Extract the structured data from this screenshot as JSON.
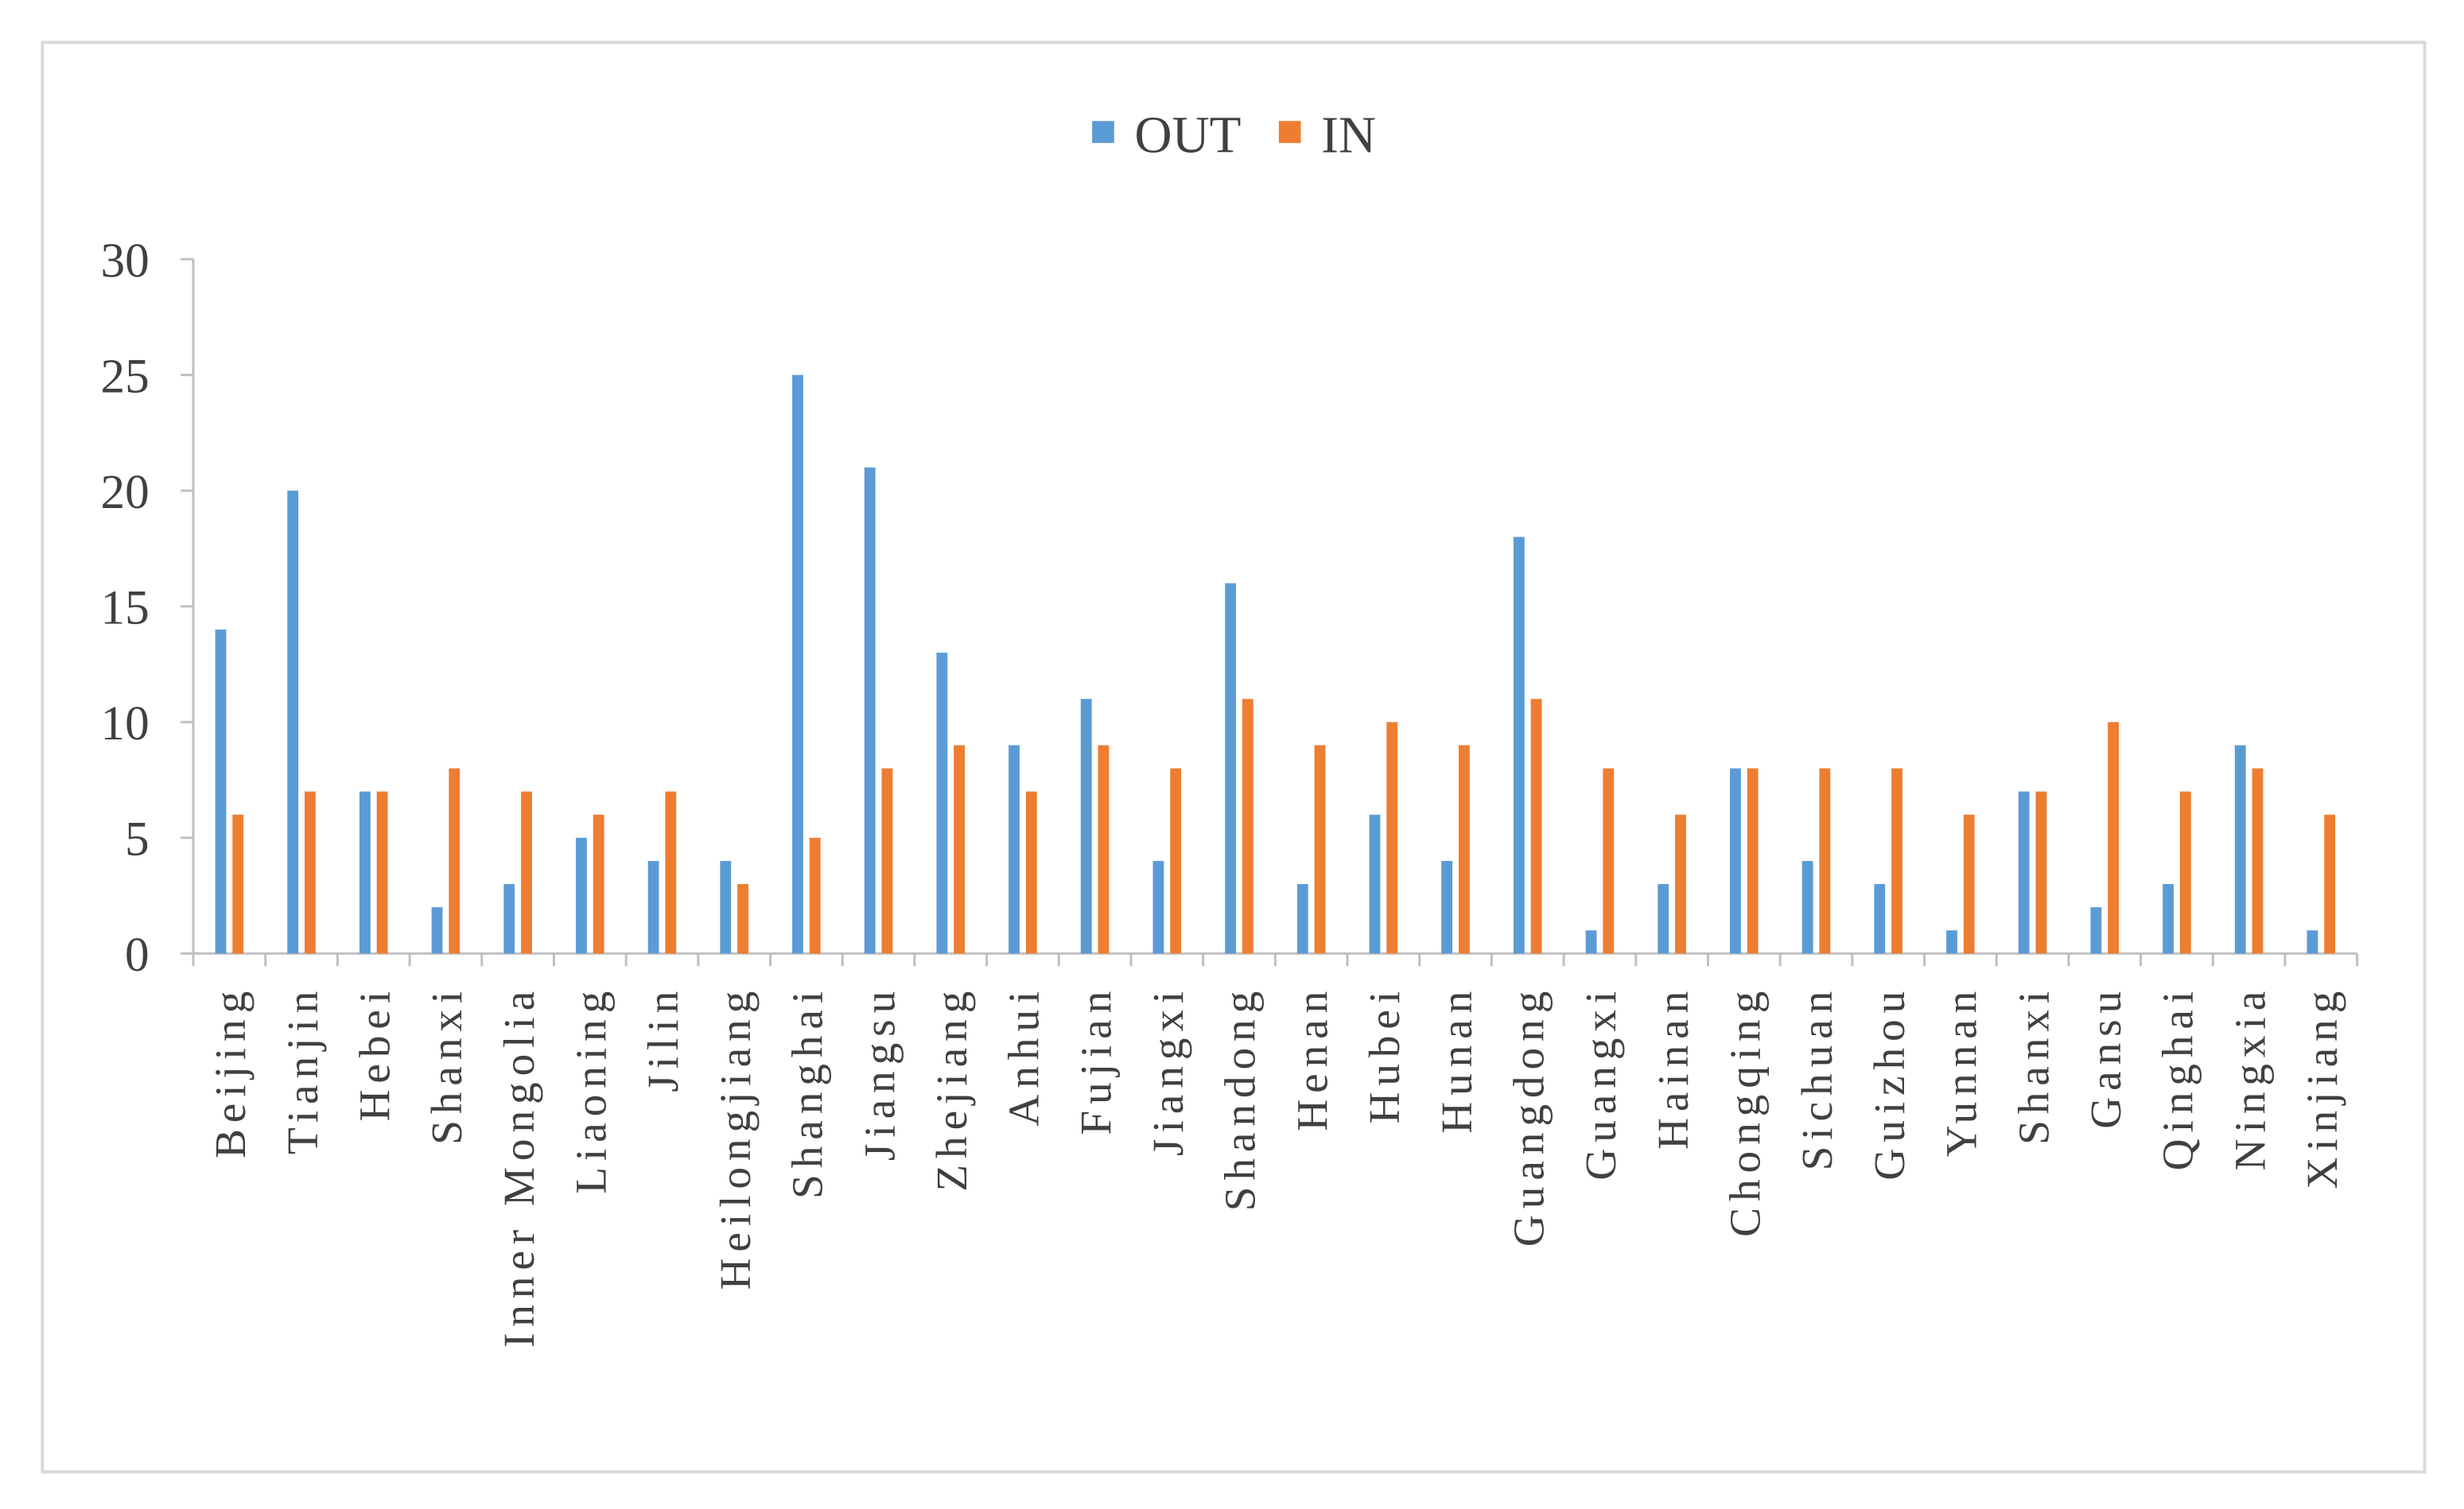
{
  "chart_data": {
    "type": "bar",
    "categories": [
      "Beijing",
      "Tianjin",
      "Hebei",
      "Shanxi",
      "Inner Mongolia",
      "Liaoning",
      "Jilin",
      "Heilongjiang",
      "Shanghai",
      "Jiangsu",
      "Zhejiang",
      "Anhui",
      "Fujian",
      "Jiangxi",
      "Shandong",
      "Henan",
      "Hubei",
      "Hunan",
      "Guangdong",
      "Guangxi",
      "Hainan",
      "Chongqing",
      "Sichuan",
      "Guizhou",
      "Yunnan",
      "Shanxi",
      "Gansu",
      "Qinghai",
      "Ningxia",
      "Xinjiang"
    ],
    "series": [
      {
        "name": "OUT",
        "color": "#5b9bd5",
        "values": [
          14,
          20,
          7,
          2,
          3,
          5,
          4,
          4,
          25,
          21,
          13,
          9,
          11,
          4,
          16,
          3,
          6,
          4,
          18,
          1,
          3,
          8,
          4,
          3,
          1,
          7,
          2,
          3,
          9,
          1
        ]
      },
      {
        "name": "IN",
        "color": "#ed7d31",
        "values": [
          6,
          7,
          7,
          8,
          7,
          6,
          7,
          3,
          5,
          8,
          9,
          7,
          9,
          8,
          11,
          9,
          10,
          9,
          11,
          8,
          6,
          8,
          8,
          8,
          6,
          7,
          10,
          7,
          8,
          6
        ]
      }
    ],
    "ylim": [
      0,
      30
    ],
    "yticks": [
      0,
      5,
      10,
      15,
      20,
      25,
      30
    ],
    "grid": false,
    "legend": "top"
  }
}
